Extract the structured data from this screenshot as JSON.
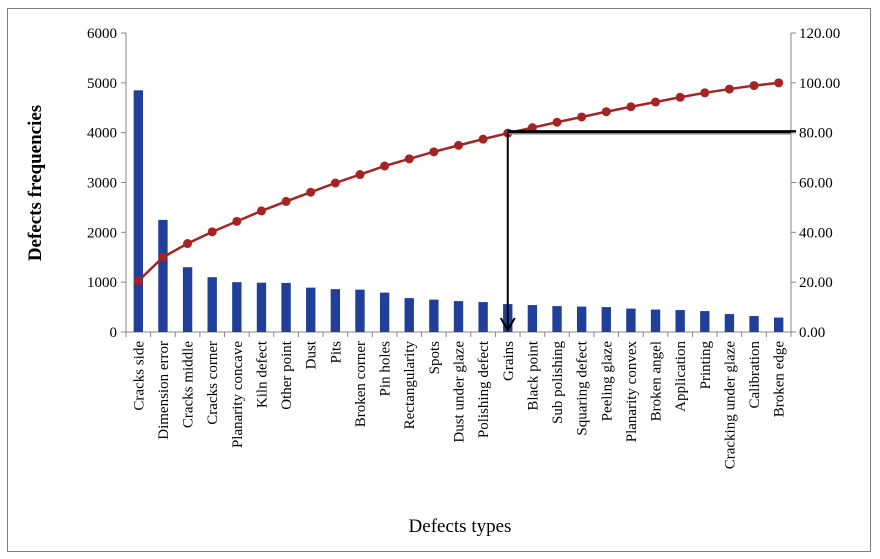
{
  "chart_data": {
    "type": "bar",
    "title": "",
    "xlabel": "Defects types",
    "ylabel": "Defects frequencies",
    "y2label": "",
    "ylim": [
      0,
      6000
    ],
    "y2lim": [
      0,
      120
    ],
    "yticks": [
      "0",
      "1000",
      "2000",
      "3000",
      "4000",
      "5000",
      "6000"
    ],
    "y2ticks": [
      "0.00",
      "20.00",
      "40.00",
      "60.00",
      "80.00",
      "100.00",
      "120.00"
    ],
    "grid": false,
    "legend": "none",
    "categories": [
      "Cracks side",
      "Dimension error",
      "Cracks middle",
      "Cracks corner",
      "Planarity concave",
      "Kiln defect",
      "Other point",
      "Dust",
      "Pits",
      "Broken corner",
      "Pin holes",
      "Rectangularity",
      "Spots",
      "Dust under glaze",
      "Polishing defect",
      "Grains",
      "Black point",
      "Sub polishing",
      "Squaring defect",
      "Peeling glaze",
      "Planarity convex",
      "Broken angel",
      "Application",
      "Printing",
      "Cracking under glaze",
      "Calibration",
      "Broken edge"
    ],
    "series": [
      {
        "type": "bar",
        "axis": "left",
        "color": "#1f3f99",
        "values": [
          4850,
          2250,
          1300,
          1100,
          1000,
          990,
          985,
          890,
          860,
          850,
          790,
          680,
          650,
          620,
          600,
          560,
          540,
          520,
          510,
          500,
          470,
          450,
          440,
          420,
          360,
          320,
          290
        ]
      },
      {
        "type": "line",
        "axis": "right",
        "color": "#a52323",
        "values": [
          20.5,
          30.0,
          35.5,
          40.2,
          44.4,
          48.6,
          52.4,
          56.1,
          59.8,
          63.2,
          66.6,
          69.5,
          72.3,
          74.9,
          77.4,
          79.8,
          82.0,
          84.2,
          86.3,
          88.4,
          90.4,
          92.3,
          94.2,
          96.0,
          97.5,
          98.9,
          100.0
        ]
      }
    ],
    "annotation": {
      "type": "pareto-80-cutoff",
      "y2_value": 80,
      "category": "Grains"
    }
  }
}
